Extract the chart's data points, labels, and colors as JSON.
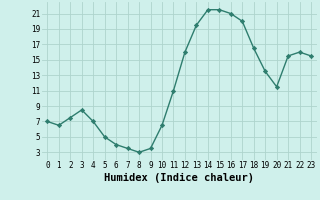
{
  "x": [
    0,
    1,
    2,
    3,
    4,
    5,
    6,
    7,
    8,
    9,
    10,
    11,
    12,
    13,
    14,
    15,
    16,
    17,
    18,
    19,
    20,
    21,
    22,
    23
  ],
  "y": [
    7,
    6.5,
    7.5,
    8.5,
    7,
    5,
    4,
    3.5,
    3,
    3.5,
    6.5,
    11,
    16,
    19.5,
    21.5,
    21.5,
    21,
    20,
    16.5,
    13.5,
    11.5,
    15.5,
    16,
    15.5
  ],
  "line_color": "#2e7d6e",
  "marker": "D",
  "marker_size": 2.2,
  "bg_color": "#cff0eb",
  "grid_color": "#aed4cd",
  "xlabel": "Humidex (Indice chaleur)",
  "xlim": [
    -0.5,
    23.5
  ],
  "ylim": [
    2,
    22.5
  ],
  "xticks": [
    0,
    1,
    2,
    3,
    4,
    5,
    6,
    7,
    8,
    9,
    10,
    11,
    12,
    13,
    14,
    15,
    16,
    17,
    18,
    19,
    20,
    21,
    22,
    23
  ],
  "yticks": [
    3,
    5,
    7,
    9,
    11,
    13,
    15,
    17,
    19,
    21
  ],
  "tick_fontsize": 5.5,
  "xlabel_fontsize": 7.5,
  "line_width": 1.0
}
